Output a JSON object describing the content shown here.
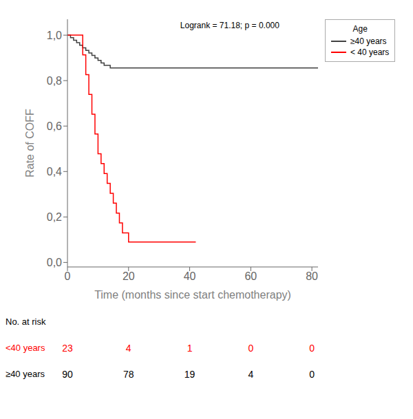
{
  "chart_data": {
    "type": "step",
    "xlabel": "Time (months since start chemotherapy)",
    "ylabel": "Rate of COFF",
    "xlim": [
      0,
      82
    ],
    "ylim": [
      -0.02,
      1.07
    ],
    "xticks": [
      0,
      20,
      40,
      60,
      80
    ],
    "yticks": [
      {
        "value": 0.0,
        "label": "0,0"
      },
      {
        "value": 0.2,
        "label": "0,2"
      },
      {
        "value": 0.4,
        "label": "0,4"
      },
      {
        "value": 0.6,
        "label": "0,6"
      },
      {
        "value": 0.8,
        "label": "0,8"
      },
      {
        "value": 1.0,
        "label": "1,0"
      }
    ],
    "annotation": "Logrank = 71.18; p = 0.000",
    "legend_title": "Age",
    "series": [
      {
        "name": "≥40 years",
        "color": "#404040",
        "x": [
          0,
          1,
          2,
          3,
          4,
          5,
          6,
          7,
          8,
          9,
          10,
          11,
          12,
          13,
          14,
          15,
          16,
          17,
          20,
          82
        ],
        "values": [
          1.0,
          0.989,
          0.978,
          0.967,
          0.956,
          0.944,
          0.933,
          0.922,
          0.911,
          0.9,
          0.889,
          0.878,
          0.867,
          0.867,
          0.856,
          0.856,
          0.856,
          0.856,
          0.856,
          0.856
        ]
      },
      {
        "name": "< 40 years",
        "color": "#ff0000",
        "x": [
          0,
          4,
          5,
          6,
          7,
          8,
          9,
          10,
          11,
          12,
          13,
          14,
          15,
          16,
          17,
          18,
          19,
          20,
          21,
          22,
          23,
          24,
          42
        ],
        "values": [
          1.0,
          1.0,
          0.913,
          0.826,
          0.739,
          0.652,
          0.565,
          0.478,
          0.435,
          0.391,
          0.348,
          0.304,
          0.261,
          0.217,
          0.174,
          0.13,
          0.13,
          0.09,
          0.09,
          0.09,
          0.09,
          0.09,
          0.09
        ]
      }
    ],
    "risk_table": {
      "title": "No. at risk",
      "x": [
        0,
        20,
        40,
        60,
        80
      ],
      "rows": [
        {
          "label": "<40 years",
          "color": "#ff0000",
          "values": [
            23,
            4,
            1,
            0,
            0
          ]
        },
        {
          "label": "≥40 years",
          "color": "#000000",
          "values": [
            90,
            78,
            19,
            4,
            0
          ]
        }
      ]
    }
  }
}
